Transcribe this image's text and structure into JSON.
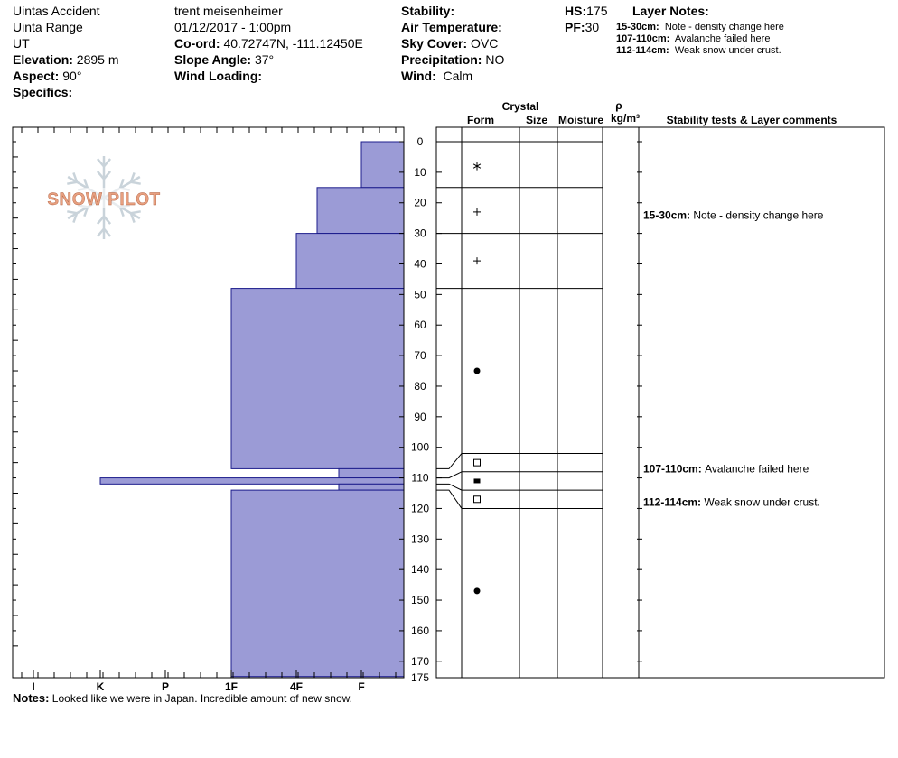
{
  "header": {
    "location_name": "Uintas Accident",
    "range": "Uinta Range",
    "state": "UT",
    "elevation_label": "Elevation:",
    "elevation": "2895 m",
    "aspect_label": "Aspect:",
    "aspect": "90°",
    "specifics_label": "Specifics:",
    "observer": "trent meisenheimer",
    "datetime": "01/12/2017 - 1:00pm",
    "coord_label": "Co-ord:",
    "coord": "40.72747N, -111.12450E",
    "slope_label": "Slope Angle:",
    "slope": "37°",
    "wind_loading_label": "Wind Loading:",
    "stability_label": "Stability:",
    "air_temp_label": "Air Temperature:",
    "sky_label": "Sky Cover:",
    "sky": "OVC",
    "precip_label": "Precipitation:",
    "precip": "NO",
    "wind_label": "Wind:",
    "wind": "Calm",
    "hs_label": "HS:",
    "hs": "175",
    "pf_label": "PF:",
    "pf": "30",
    "layer_notes_title": "Layer Notes:",
    "layer_notes": [
      {
        "range": "15-30cm:",
        "text": "Note - density change here"
      },
      {
        "range": "107-110cm:",
        "text": "Avalanche failed here"
      },
      {
        "range": "112-114cm:",
        "text": "Weak snow under crust."
      }
    ]
  },
  "columns": {
    "crystal": "Crystal",
    "form": "Form",
    "size": "Size",
    "moisture": "Moisture",
    "rho": "ρ",
    "density_unit": "kg/m³",
    "stability": "Stability tests & Layer comments"
  },
  "notes_label": "Notes:",
  "notes_text": "Looked like we were in Japan. Incredible amount of new snow.",
  "logo_text": "SNOW PILOT",
  "colors": {
    "hardness_fill": "#9b9bd6",
    "hardness_edge": "#1c1c8c",
    "logo": "#e8a080",
    "flake": "#c9d3da"
  },
  "chart_data": {
    "type": "bar",
    "orientation": "horizontal",
    "depth_axis": {
      "range": [
        0,
        175
      ],
      "ticks": [
        0,
        10,
        20,
        30,
        40,
        50,
        60,
        70,
        80,
        90,
        100,
        110,
        120,
        130,
        140,
        150,
        160,
        170,
        175
      ]
    },
    "hardness_axis": {
      "categories": [
        "I",
        "K",
        "P",
        "1F",
        "4F",
        "F"
      ]
    },
    "layers": [
      {
        "top": 0,
        "bottom": 15,
        "hardness": "F",
        "form": "new-snow"
      },
      {
        "top": 15,
        "bottom": 30,
        "hardness": "F+",
        "form": "decomposing"
      },
      {
        "top": 30,
        "bottom": 48,
        "hardness": "4F",
        "form": "decomposing"
      },
      {
        "top": 48,
        "bottom": 107,
        "hardness": "1F",
        "form": "rounds"
      },
      {
        "top": 107,
        "bottom": 110,
        "hardness": "4F-",
        "form": "facets"
      },
      {
        "top": 110,
        "bottom": 112,
        "hardness": "K",
        "form": "crust"
      },
      {
        "top": 112,
        "bottom": 114,
        "hardness": "4F-",
        "form": "facets"
      },
      {
        "top": 114,
        "bottom": 175,
        "hardness": "1F",
        "form": "rounds"
      }
    ],
    "form_boundaries_right": [
      0,
      15,
      30,
      48,
      102,
      108,
      114,
      120
    ],
    "form_boundaries_left": [
      0,
      15,
      30,
      48,
      107,
      110,
      112,
      114
    ],
    "form_symbols": [
      {
        "depth": 8,
        "form": "new-snow"
      },
      {
        "depth": 23,
        "form": "decomposing"
      },
      {
        "depth": 39,
        "form": "decomposing"
      },
      {
        "depth": 75,
        "form": "rounds"
      },
      {
        "depth": 105,
        "form": "facets"
      },
      {
        "depth": 111,
        "form": "crust"
      },
      {
        "depth": 117,
        "form": "facets"
      },
      {
        "depth": 147,
        "form": "rounds"
      }
    ],
    "comments": [
      {
        "depth": 24,
        "range": "15-30cm:",
        "text": "Note - density change here"
      },
      {
        "depth": 107,
        "range": "107-110cm:",
        "text": "Avalanche failed here"
      },
      {
        "depth": 118,
        "range": "112-114cm:",
        "text": "Weak snow under crust."
      }
    ]
  }
}
